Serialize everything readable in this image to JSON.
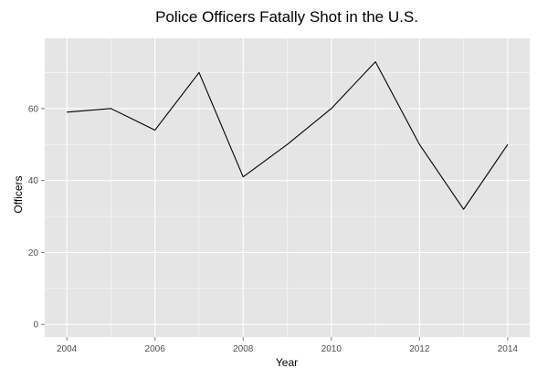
{
  "chart_data": {
    "type": "line",
    "title": "Police Officers Fatally Shot in the U.S.",
    "xlabel": "Year",
    "ylabel": "Officers",
    "x": [
      2004,
      2005,
      2006,
      2007,
      2008,
      2009,
      2010,
      2011,
      2012,
      2013,
      2014
    ],
    "series": [
      {
        "values": [
          59,
          60,
          54,
          70,
          41,
          50,
          60,
          73,
          50,
          32,
          50
        ]
      }
    ],
    "xlim": [
      2003.5,
      2014.5
    ],
    "ylim": [
      -3.5,
      79.5
    ],
    "x_ticks": [
      2004,
      2006,
      2008,
      2010,
      2012,
      2014
    ],
    "y_ticks": [
      0,
      20,
      40,
      60
    ],
    "grid": true,
    "colors": {
      "panel": "#e5e5e5",
      "grid": "#ffffff",
      "line": "#000000"
    }
  }
}
